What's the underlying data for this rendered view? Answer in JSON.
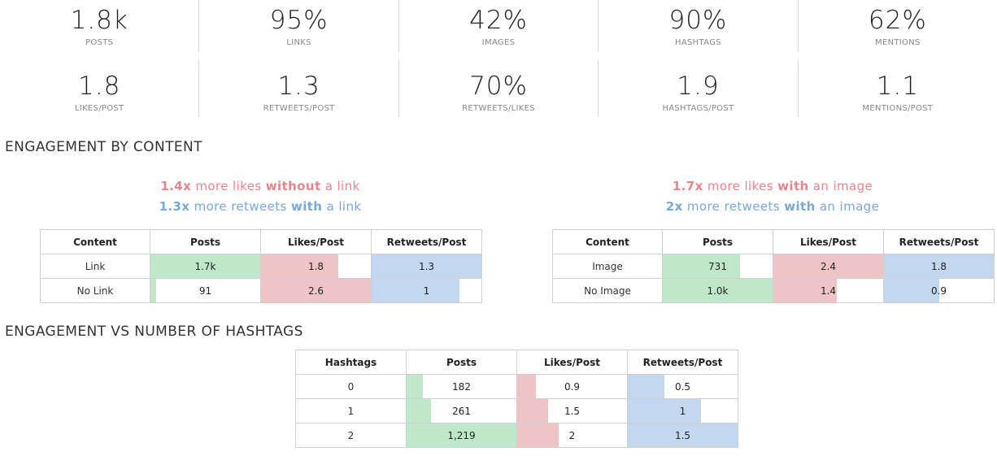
{
  "stats_row1": [
    {
      "value": "1.8k",
      "label": "POSTS"
    },
    {
      "value": "95%",
      "label": "LINKS"
    },
    {
      "value": "42%",
      "label": "IMAGES"
    },
    {
      "value": "90%",
      "label": "HASHTAGS"
    },
    {
      "value": "62%",
      "label": "MENTIONS"
    }
  ],
  "stats_row2": [
    {
      "value": "1.8",
      "label": "LIKES/POST"
    },
    {
      "value": "1.3",
      "label": "RETWEETS/POST"
    },
    {
      "value": "70%",
      "label": "RETWEETS/LIKES"
    },
    {
      "value": "1.9",
      "label": "HASHTAGS/POST"
    },
    {
      "value": "1.1",
      "label": "MENTIONS/POST"
    }
  ],
  "section_content": {
    "title": "ENGAGEMENT BY CONTENT",
    "link_insight": {
      "likes": {
        "mult": "1.4x",
        "pre": " more likes ",
        "em": "without",
        "post": " a link"
      },
      "retweets": {
        "mult": "1.3x",
        "pre": " more retweets ",
        "em": "with",
        "post": " a link"
      }
    },
    "image_insight": {
      "likes": {
        "mult": "1.7x",
        "pre": " more likes ",
        "em": "with",
        "post": " an image"
      },
      "retweets": {
        "mult": "2x",
        "pre": " more retweets ",
        "em": "with",
        "post": " an image"
      }
    },
    "link_table": {
      "headers": [
        "Content",
        "Posts",
        "Likes/Post",
        "Retweets/Post"
      ],
      "rows": [
        {
          "label": "Link",
          "posts": "1.7k",
          "posts_frac": 1.0,
          "likes": "1.8",
          "likes_frac": 0.7,
          "retweets": "1.3",
          "retweets_frac": 1.0
        },
        {
          "label": "No Link",
          "posts": "91",
          "posts_frac": 0.05,
          "likes": "2.6",
          "likes_frac": 1.0,
          "retweets": "1",
          "retweets_frac": 0.8
        }
      ]
    },
    "image_table": {
      "headers": [
        "Content",
        "Posts",
        "Likes/Post",
        "Retweets/Post"
      ],
      "rows": [
        {
          "label": "Image",
          "posts": "731",
          "posts_frac": 0.7,
          "likes": "2.4",
          "likes_frac": 1.0,
          "retweets": "1.8",
          "retweets_frac": 1.0
        },
        {
          "label": "No Image",
          "posts": "1.0k",
          "posts_frac": 1.0,
          "likes": "1.4",
          "likes_frac": 0.58,
          "retweets": "0.9",
          "retweets_frac": 0.5
        }
      ]
    }
  },
  "section_hashtags": {
    "title": "ENGAGEMENT VS NUMBER OF HASHTAGS",
    "table": {
      "headers": [
        "Hashtags",
        "Posts",
        "Likes/Post",
        "Retweets/Post"
      ],
      "rows": [
        {
          "label": "0",
          "posts": "182",
          "posts_frac": 0.15,
          "likes": "0.9",
          "likes_frac": 0.17,
          "retweets": "0.5",
          "retweets_frac": 0.33
        },
        {
          "label": "1",
          "posts": "261",
          "posts_frac": 0.22,
          "likes": "1.5",
          "likes_frac": 0.28,
          "retweets": "1",
          "retweets_frac": 0.67
        },
        {
          "label": "2",
          "posts": "1,219",
          "posts_frac": 1.0,
          "likes": "2",
          "likes_frac": 0.38,
          "retweets": "1.5",
          "retweets_frac": 1.0
        }
      ]
    }
  },
  "colors": {
    "green_bar": "#bfe8ca",
    "pink_bar": "#efc4c6",
    "blue_bar": "#c3d7ee",
    "pink_text": "#e8858c",
    "blue_text": "#7aa8d8"
  }
}
